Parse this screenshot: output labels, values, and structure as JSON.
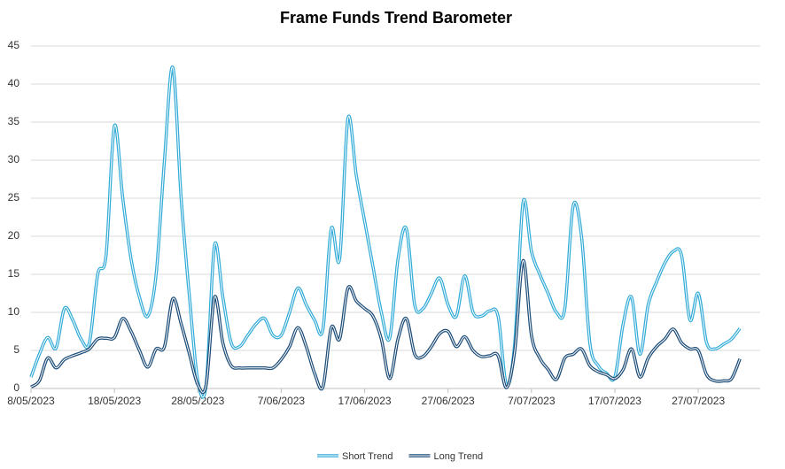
{
  "chart_data": {
    "type": "line",
    "title": "Frame Funds Trend Barometer",
    "x": [
      "8/05/2023",
      "9/05/2023",
      "10/05/2023",
      "11/05/2023",
      "12/05/2023",
      "13/05/2023",
      "14/05/2023",
      "15/05/2023",
      "16/05/2023",
      "17/05/2023",
      "18/05/2023",
      "19/05/2023",
      "20/05/2023",
      "21/05/2023",
      "22/05/2023",
      "23/05/2023",
      "24/05/2023",
      "25/05/2023",
      "26/05/2023",
      "27/05/2023",
      "28/05/2023",
      "29/05/2023",
      "30/05/2023",
      "31/05/2023",
      "1/06/2023",
      "2/06/2023",
      "3/06/2023",
      "4/06/2023",
      "5/06/2023",
      "6/06/2023",
      "7/06/2023",
      "8/06/2023",
      "9/06/2023",
      "10/06/2023",
      "11/06/2023",
      "12/06/2023",
      "13/06/2023",
      "14/06/2023",
      "15/06/2023",
      "16/06/2023",
      "17/06/2023",
      "18/06/2023",
      "19/06/2023",
      "20/06/2023",
      "21/06/2023",
      "22/06/2023",
      "23/06/2023",
      "24/06/2023",
      "25/06/2023",
      "26/06/2023",
      "27/06/2023",
      "28/06/2023",
      "29/06/2023",
      "30/06/2023",
      "1/07/2023",
      "2/07/2023",
      "3/07/2023",
      "4/07/2023",
      "5/07/2023",
      "6/07/2023",
      "7/07/2023",
      "8/07/2023",
      "9/07/2023",
      "10/07/2023",
      "11/07/2023",
      "12/07/2023",
      "13/07/2023",
      "14/07/2023",
      "15/07/2023",
      "16/07/2023",
      "17/07/2023",
      "18/07/2023",
      "19/07/2023",
      "20/07/2023",
      "21/07/2023",
      "22/07/2023",
      "23/07/2023",
      "24/07/2023",
      "25/07/2023",
      "26/07/2023",
      "27/07/2023",
      "28/07/2023",
      "29/07/2023",
      "30/07/2023",
      "31/07/2023",
      "1/08/2023"
    ],
    "series": [
      {
        "name": "Short Trend",
        "color": "#35acd8",
        "values": [
          1.5,
          4.5,
          6.7,
          5.3,
          10.5,
          9,
          6.5,
          6,
          15,
          17.5,
          34.5,
          25,
          17,
          12,
          9.5,
          15,
          30,
          42.2,
          25,
          12,
          1,
          0.5,
          18.8,
          12,
          6,
          5.5,
          7,
          8.5,
          9.2,
          7,
          7,
          10,
          13.2,
          11,
          9,
          7.8,
          21,
          17,
          35.5,
          28,
          22,
          16,
          10,
          6.6,
          17,
          21,
          11,
          10.5,
          12.5,
          14.5,
          11,
          9.5,
          14.8,
          10,
          9.5,
          10.2,
          9.5,
          0.5,
          6,
          24.5,
          18,
          15,
          12.5,
          10,
          10.5,
          24,
          20,
          6,
          3,
          2,
          1.5,
          8.5,
          12,
          4.5,
          11,
          14,
          16.5,
          18,
          17.5,
          9,
          12.5,
          6,
          5.2,
          5.8,
          6.5,
          7.9
        ]
      },
      {
        "name": "Long Trend",
        "color": "#1f4e79",
        "values": [
          0.2,
          1,
          4,
          2.7,
          3.8,
          4.3,
          4.7,
          5.2,
          6.5,
          6.6,
          6.7,
          9.2,
          7.5,
          5,
          2.8,
          5.2,
          5.5,
          11.8,
          8.5,
          4.5,
          0.5,
          0.5,
          12,
          6,
          3,
          2.7,
          2.7,
          2.7,
          2.7,
          2.7,
          3.8,
          5.5,
          8,
          5.5,
          2,
          0.2,
          8,
          6.5,
          13.2,
          11.5,
          10.5,
          9.5,
          6.5,
          1.3,
          6.5,
          9.2,
          4.5,
          4.2,
          5.5,
          7.2,
          7.5,
          5.5,
          6.8,
          5,
          4.2,
          4.3,
          4.3,
          0.1,
          5,
          16.8,
          7,
          4,
          2.5,
          1.2,
          4,
          4.5,
          5.2,
          3,
          2.2,
          1.8,
          1.3,
          2.5,
          5.2,
          1.5,
          4,
          5.5,
          6.5,
          7.8,
          6,
          5.2,
          5,
          1.8,
          1,
          1,
          1.3,
          3.9
        ]
      }
    ],
    "xlim": [
      "8/05/2023",
      "3/08/2023"
    ],
    "xticks": [
      "8/05/2023",
      "18/05/2023",
      "28/05/2023",
      "7/06/2023",
      "17/06/2023",
      "27/06/2023",
      "7/07/2023",
      "17/07/2023",
      "27/07/2023"
    ],
    "ylim": [
      0,
      45
    ],
    "yticks": [
      0,
      5,
      10,
      15,
      20,
      25,
      30,
      35,
      40,
      45
    ],
    "grid": true,
    "legend": "bottom"
  }
}
